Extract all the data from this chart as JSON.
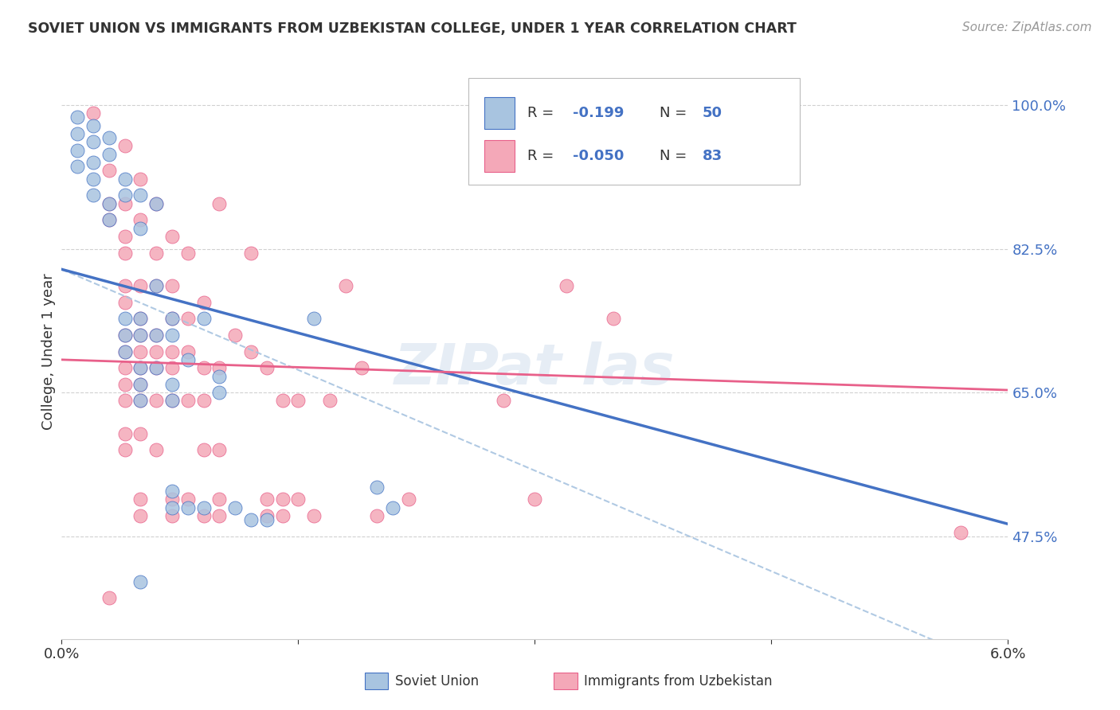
{
  "title": "SOVIET UNION VS IMMIGRANTS FROM UZBEKISTAN COLLEGE, UNDER 1 YEAR CORRELATION CHART",
  "source": "Source: ZipAtlas.com",
  "ylabel": "College, Under 1 year",
  "xmin": 0.0,
  "xmax": 0.06,
  "ymin": 0.35,
  "ymax": 1.05,
  "yticks": [
    0.475,
    0.65,
    0.825,
    1.0
  ],
  "ytick_labels": [
    "47.5%",
    "65.0%",
    "82.5%",
    "100.0%"
  ],
  "xticks": [
    0.0,
    0.015,
    0.03,
    0.045,
    0.06
  ],
  "xtick_labels": [
    "0.0%",
    "",
    "",
    "",
    "6.0%"
  ],
  "color_soviet": "#a8c4e0",
  "color_uzbek": "#f4a8b8",
  "color_soviet_line": "#4472c4",
  "color_uzbek_line": "#e8608a",
  "color_dashed": "#a8c4e0",
  "soviet_points": [
    [
      0.001,
      0.985
    ],
    [
      0.001,
      0.965
    ],
    [
      0.001,
      0.945
    ],
    [
      0.001,
      0.925
    ],
    [
      0.002,
      0.975
    ],
    [
      0.002,
      0.955
    ],
    [
      0.002,
      0.93
    ],
    [
      0.002,
      0.91
    ],
    [
      0.002,
      0.89
    ],
    [
      0.003,
      0.96
    ],
    [
      0.003,
      0.94
    ],
    [
      0.003,
      0.88
    ],
    [
      0.003,
      0.86
    ],
    [
      0.004,
      0.91
    ],
    [
      0.004,
      0.89
    ],
    [
      0.004,
      0.74
    ],
    [
      0.004,
      0.72
    ],
    [
      0.004,
      0.7
    ],
    [
      0.005,
      0.89
    ],
    [
      0.005,
      0.85
    ],
    [
      0.005,
      0.74
    ],
    [
      0.005,
      0.72
    ],
    [
      0.005,
      0.68
    ],
    [
      0.005,
      0.66
    ],
    [
      0.005,
      0.64
    ],
    [
      0.006,
      0.88
    ],
    [
      0.006,
      0.78
    ],
    [
      0.006,
      0.72
    ],
    [
      0.006,
      0.68
    ],
    [
      0.007,
      0.74
    ],
    [
      0.007,
      0.72
    ],
    [
      0.007,
      0.66
    ],
    [
      0.007,
      0.64
    ],
    [
      0.007,
      0.53
    ],
    [
      0.007,
      0.51
    ],
    [
      0.008,
      0.69
    ],
    [
      0.008,
      0.51
    ],
    [
      0.009,
      0.74
    ],
    [
      0.009,
      0.51
    ],
    [
      0.01,
      0.67
    ],
    [
      0.01,
      0.65
    ],
    [
      0.011,
      0.51
    ],
    [
      0.012,
      0.495
    ],
    [
      0.013,
      0.495
    ],
    [
      0.016,
      0.74
    ],
    [
      0.02,
      0.535
    ],
    [
      0.021,
      0.51
    ],
    [
      0.005,
      0.42
    ]
  ],
  "uzbek_points": [
    [
      0.002,
      0.99
    ],
    [
      0.003,
      0.92
    ],
    [
      0.003,
      0.88
    ],
    [
      0.003,
      0.86
    ],
    [
      0.004,
      0.95
    ],
    [
      0.004,
      0.88
    ],
    [
      0.004,
      0.84
    ],
    [
      0.004,
      0.82
    ],
    [
      0.004,
      0.78
    ],
    [
      0.004,
      0.76
    ],
    [
      0.004,
      0.72
    ],
    [
      0.004,
      0.7
    ],
    [
      0.004,
      0.68
    ],
    [
      0.004,
      0.66
    ],
    [
      0.004,
      0.64
    ],
    [
      0.004,
      0.6
    ],
    [
      0.004,
      0.58
    ],
    [
      0.005,
      0.91
    ],
    [
      0.005,
      0.86
    ],
    [
      0.005,
      0.78
    ],
    [
      0.005,
      0.74
    ],
    [
      0.005,
      0.72
    ],
    [
      0.005,
      0.7
    ],
    [
      0.005,
      0.68
    ],
    [
      0.005,
      0.66
    ],
    [
      0.005,
      0.64
    ],
    [
      0.005,
      0.6
    ],
    [
      0.005,
      0.52
    ],
    [
      0.005,
      0.5
    ],
    [
      0.006,
      0.88
    ],
    [
      0.006,
      0.82
    ],
    [
      0.006,
      0.78
    ],
    [
      0.006,
      0.72
    ],
    [
      0.006,
      0.7
    ],
    [
      0.006,
      0.68
    ],
    [
      0.006,
      0.64
    ],
    [
      0.006,
      0.58
    ],
    [
      0.007,
      0.84
    ],
    [
      0.007,
      0.78
    ],
    [
      0.007,
      0.74
    ],
    [
      0.007,
      0.7
    ],
    [
      0.007,
      0.68
    ],
    [
      0.007,
      0.64
    ],
    [
      0.007,
      0.52
    ],
    [
      0.007,
      0.5
    ],
    [
      0.008,
      0.82
    ],
    [
      0.008,
      0.74
    ],
    [
      0.008,
      0.7
    ],
    [
      0.008,
      0.64
    ],
    [
      0.008,
      0.52
    ],
    [
      0.009,
      0.76
    ],
    [
      0.009,
      0.68
    ],
    [
      0.009,
      0.64
    ],
    [
      0.009,
      0.58
    ],
    [
      0.009,
      0.5
    ],
    [
      0.01,
      0.88
    ],
    [
      0.01,
      0.68
    ],
    [
      0.01,
      0.58
    ],
    [
      0.01,
      0.52
    ],
    [
      0.01,
      0.5
    ],
    [
      0.011,
      0.72
    ],
    [
      0.012,
      0.82
    ],
    [
      0.012,
      0.7
    ],
    [
      0.013,
      0.68
    ],
    [
      0.013,
      0.52
    ],
    [
      0.013,
      0.5
    ],
    [
      0.014,
      0.64
    ],
    [
      0.014,
      0.52
    ],
    [
      0.014,
      0.5
    ],
    [
      0.015,
      0.64
    ],
    [
      0.015,
      0.52
    ],
    [
      0.016,
      0.5
    ],
    [
      0.017,
      0.64
    ],
    [
      0.018,
      0.78
    ],
    [
      0.019,
      0.68
    ],
    [
      0.02,
      0.5
    ],
    [
      0.022,
      0.52
    ],
    [
      0.028,
      0.64
    ],
    [
      0.03,
      0.52
    ],
    [
      0.032,
      0.78
    ],
    [
      0.035,
      0.74
    ],
    [
      0.057,
      0.48
    ],
    [
      0.003,
      0.4
    ]
  ],
  "soviet_line_x": [
    0.0,
    0.06
  ],
  "soviet_line_y": [
    0.8,
    0.49
  ],
  "uzbek_line_x": [
    0.0,
    0.06
  ],
  "uzbek_line_y": [
    0.69,
    0.653
  ],
  "dashed_line_x": [
    0.0,
    0.06
  ],
  "dashed_line_y": [
    0.8,
    0.31
  ],
  "grid_color": "#cccccc",
  "background_color": "#ffffff",
  "watermark_color": "#c8d8ea"
}
